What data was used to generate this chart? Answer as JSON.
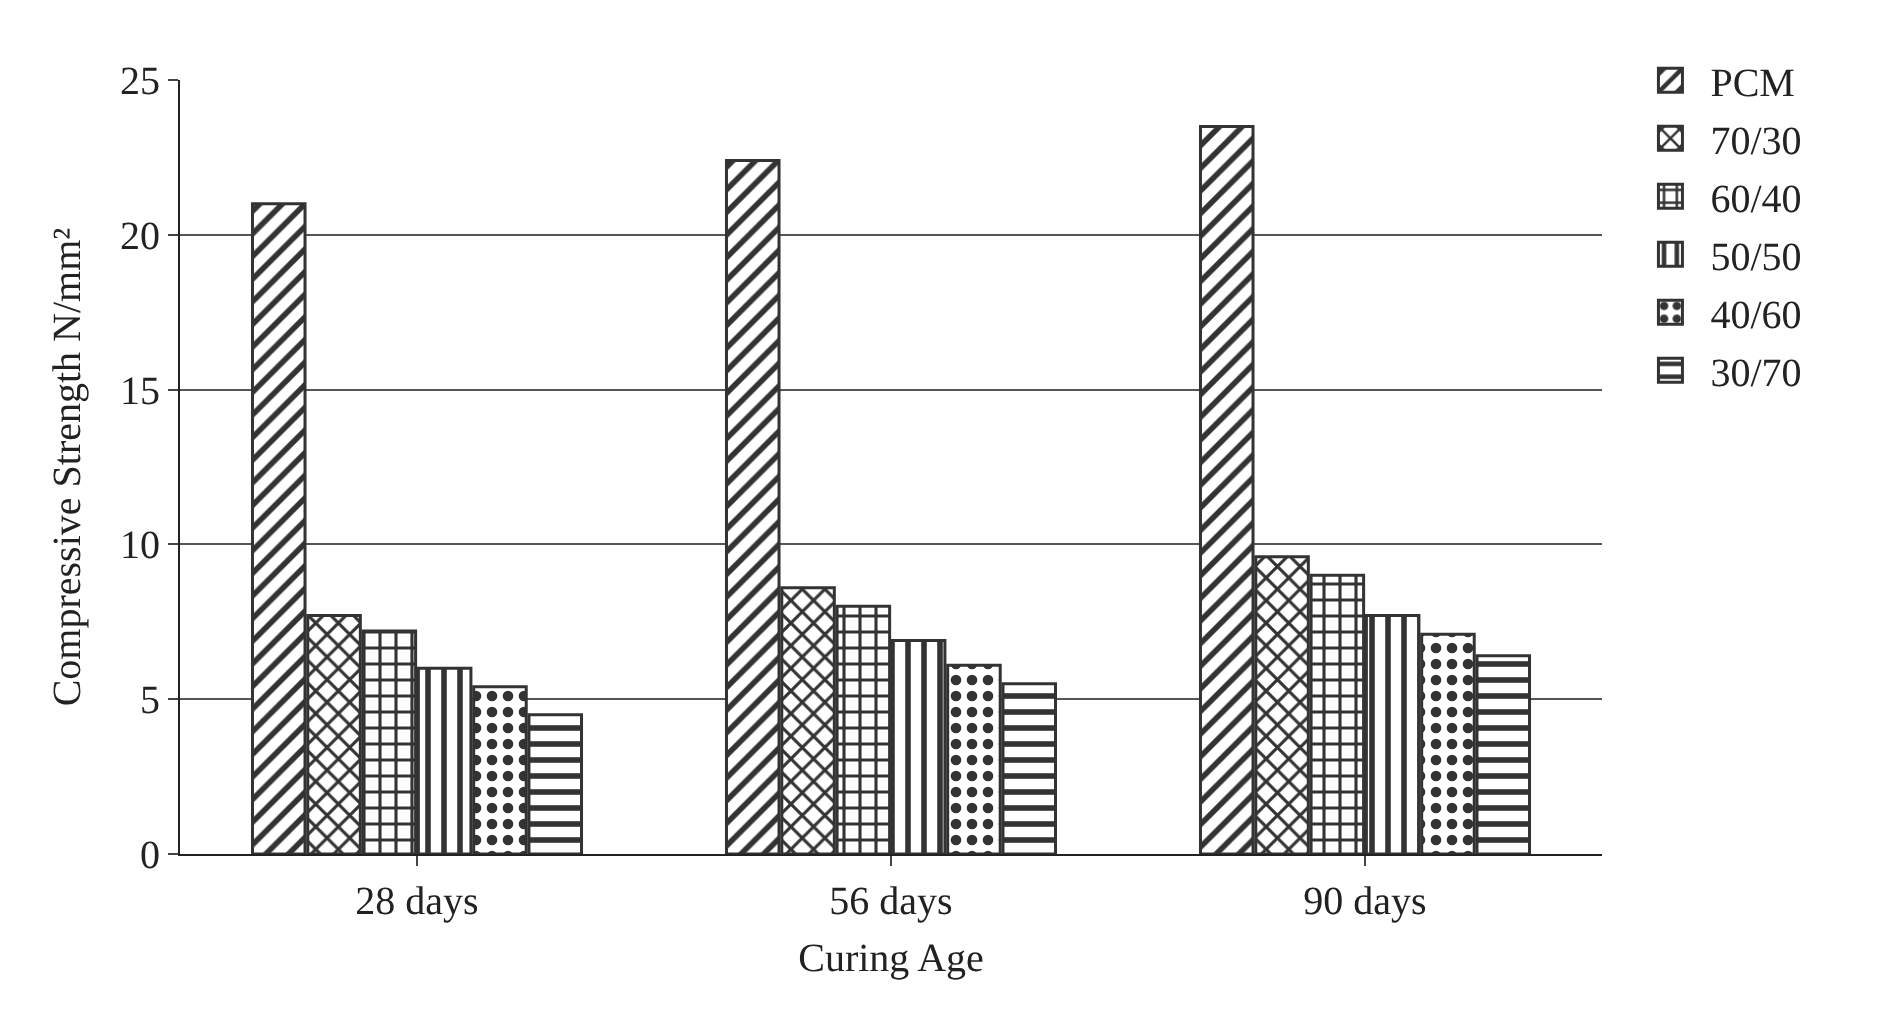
{
  "chart_data": {
    "type": "bar",
    "xlabel": "Curing Age",
    "ylabel": "Compressive Strength N/mm²",
    "categories": [
      "28 days",
      "56 days",
      "90 days"
    ],
    "series": [
      {
        "name": "PCM",
        "color": "#333333",
        "values": [
          21,
          22.4,
          23.5
        ]
      },
      {
        "name": "70/30",
        "color": "#333333",
        "values": [
          7.7,
          8.6,
          9.6
        ]
      },
      {
        "name": "60/40",
        "color": "#333333",
        "values": [
          7.2,
          8,
          9
        ]
      },
      {
        "name": "50/50",
        "color": "#333333",
        "values": [
          6,
          6.9,
          7.7
        ]
      },
      {
        "name": "40/60",
        "color": "#333333",
        "values": [
          5.4,
          6.1,
          7.1
        ]
      },
      {
        "name": "30/70",
        "color": "#333333",
        "values": [
          4.5,
          5.5,
          6.4
        ]
      }
    ],
    "ylim": [
      0,
      25
    ],
    "yticks": [
      0,
      5,
      10,
      15,
      20,
      25
    ],
    "grid": "y",
    "legend": "top right"
  }
}
